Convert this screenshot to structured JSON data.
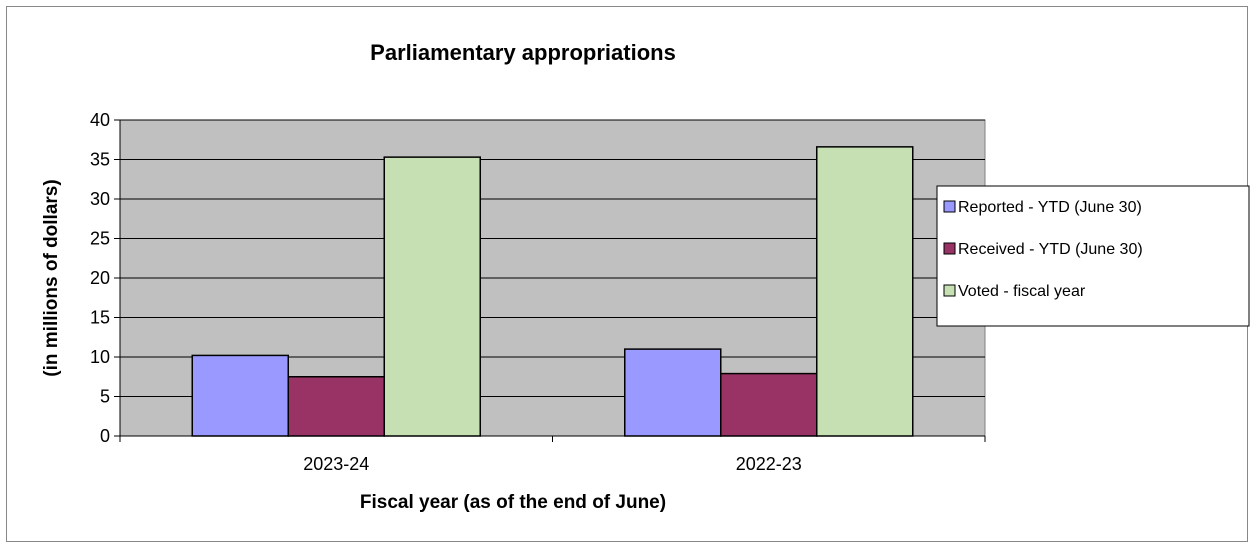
{
  "chart_data": {
    "type": "bar",
    "title": "Parliamentary appropriations",
    "xlabel": "Fiscal year (as of the end of June)",
    "ylabel": "(in millions of dollars)",
    "categories": [
      "2023-24",
      "2022-23"
    ],
    "ylim": [
      0,
      40
    ],
    "yticks": [
      0,
      5,
      10,
      15,
      20,
      25,
      30,
      35,
      40
    ],
    "grid": true,
    "legend_position": "right",
    "series": [
      {
        "name": "Reported - YTD (June 30)",
        "values": [
          10.2,
          11.0
        ],
        "color": "#9999ff"
      },
      {
        "name": "Received - YTD (June 30)",
        "values": [
          7.5,
          7.9
        ],
        "color": "#993366"
      },
      {
        "name": "Voted - fiscal year",
        "values": [
          35.3,
          36.6
        ],
        "color": "#c6e0b4"
      }
    ],
    "plot_background": "#c0c0c0"
  }
}
